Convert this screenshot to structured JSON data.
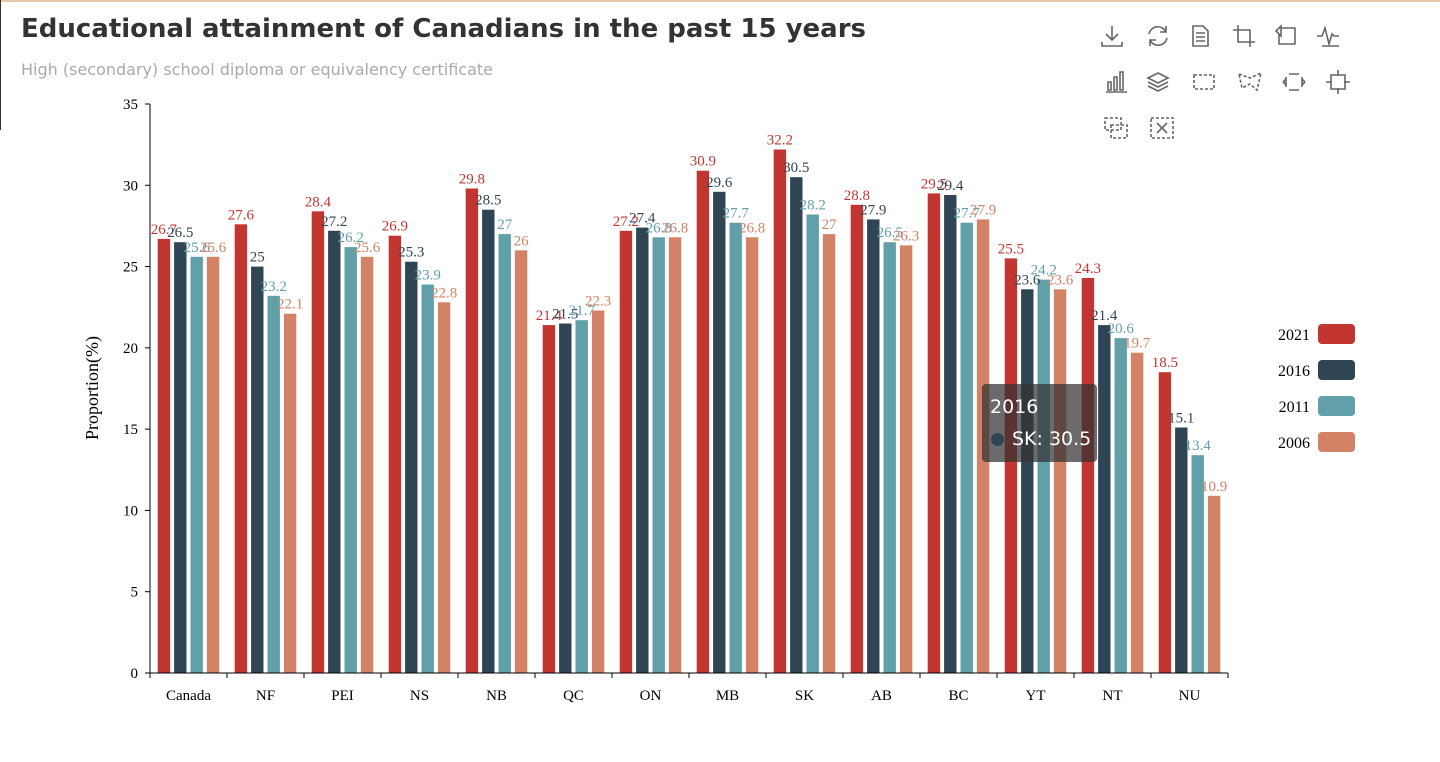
{
  "chart_data": {
    "type": "bar",
    "title": "Educational attainment of Canadians in the past 15 years",
    "subtitle": "High (secondary) school diploma or equivalency certificate",
    "ylabel": "Proportion(%)",
    "xlabel": "",
    "ylim": [
      0,
      35
    ],
    "yticks": [
      0,
      5,
      10,
      15,
      20,
      25,
      30,
      35
    ],
    "categories": [
      "Canada",
      "NF",
      "PEI",
      "NS",
      "NB",
      "QC",
      "ON",
      "MB",
      "SK",
      "AB",
      "BC",
      "YT",
      "NT",
      "NU"
    ],
    "series": [
      {
        "name": "2021",
        "color": "#c23531",
        "values": [
          26.7,
          27.6,
          28.4,
          26.9,
          29.8,
          21.4,
          27.2,
          30.9,
          32.2,
          28.8,
          29.5,
          25.5,
          24.3,
          18.5
        ]
      },
      {
        "name": "2016",
        "color": "#2f4554",
        "values": [
          26.5,
          25.0,
          27.2,
          25.3,
          28.5,
          21.5,
          27.4,
          29.6,
          30.5,
          27.9,
          29.4,
          23.6,
          21.4,
          15.1
        ]
      },
      {
        "name": "2011",
        "color": "#61a0a8",
        "values": [
          25.6,
          23.2,
          26.2,
          23.9,
          27.0,
          21.7,
          26.8,
          27.7,
          28.2,
          26.5,
          27.7,
          24.2,
          20.6,
          13.4
        ]
      },
      {
        "name": "2006",
        "color": "#d48265",
        "values": [
          25.6,
          22.1,
          25.6,
          22.8,
          26.0,
          22.3,
          26.8,
          26.8,
          27.0,
          26.3,
          27.9,
          23.6,
          19.7,
          10.9
        ]
      }
    ],
    "legend_position": "right",
    "grid": false
  },
  "tooltip": {
    "title": "2016",
    "text": "SK: 30.5",
    "color": "#2f4554"
  },
  "toolbox": {
    "icons": [
      "download-icon",
      "restore-icon",
      "data-view-icon",
      "zoom-icon",
      "zoom-back-icon",
      "line-chart-icon",
      "bar-chart-icon",
      "stack-icon",
      "rect-select-icon",
      "polygon-select-icon",
      "keep-select-icon",
      "clear-select-icon",
      "brush-icon",
      "clear-icon"
    ]
  }
}
